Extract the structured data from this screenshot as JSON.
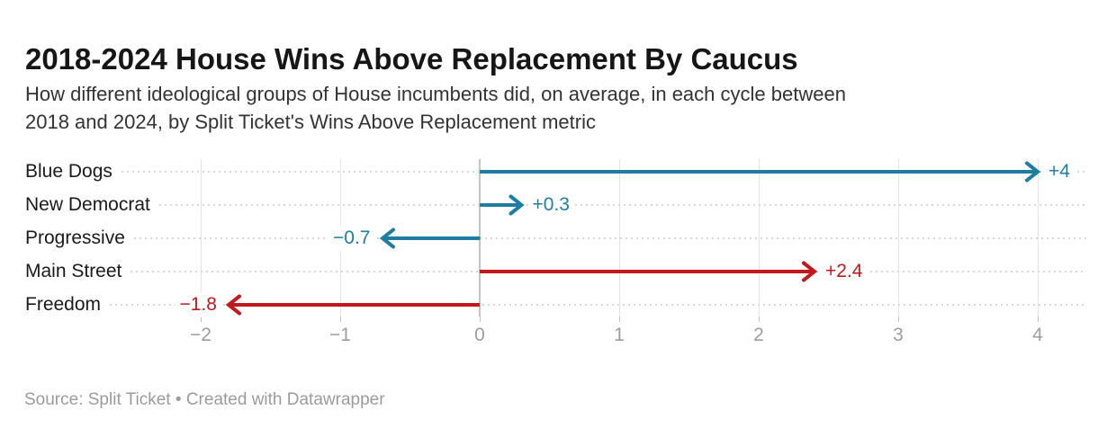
{
  "colors": {
    "dem_blue": "#1d7ea1",
    "gop_red": "#c4181c",
    "grid": "#e4e4e4",
    "zero_line": "#c4c4c4",
    "axis_text": "#9d9d9d",
    "footer_text": "#9b9b9b"
  },
  "chart_data": {
    "type": "bar",
    "subtype": "arrow",
    "orientation": "horizontal",
    "title": "2018-2024 House Wins Above Replacement By Caucus",
    "subtitle": "How different ideological groups of House incumbents did, on average, in each cycle between 2018 and 2024, by Split Ticket's Wins Above Replacement metric",
    "subtitle_lines": [
      "How different ideological groups of House incumbents did, on average, in each cycle between",
      "2018 and 2024, by Split Ticket's Wins Above Replacement metric"
    ],
    "source": "Source: Split Ticket • Created with Datawrapper",
    "categories": [
      "Blue Dogs",
      "New Democrat",
      "Progressive",
      "Main Street",
      "Freedom"
    ],
    "values": [
      4,
      0.3,
      -0.7,
      2.4,
      -1.8
    ],
    "value_labels": [
      "+4",
      "+0.3",
      "−0.7",
      "+2.4",
      "−1.8"
    ],
    "bar_colors": [
      "#1d7ea1",
      "#1d7ea1",
      "#1d7ea1",
      "#c4181c",
      "#c4181c"
    ],
    "xlabel": "",
    "ylabel": "",
    "xlim": [
      -2.05,
      4.35
    ],
    "x_ticks": [
      -2,
      -1,
      0,
      1,
      2,
      3,
      4
    ],
    "x_tick_labels": [
      "−2",
      "−1",
      "0",
      "1",
      "2",
      "3",
      "4"
    ],
    "grid": "vertical",
    "zero_baseline": true,
    "legend": false
  }
}
